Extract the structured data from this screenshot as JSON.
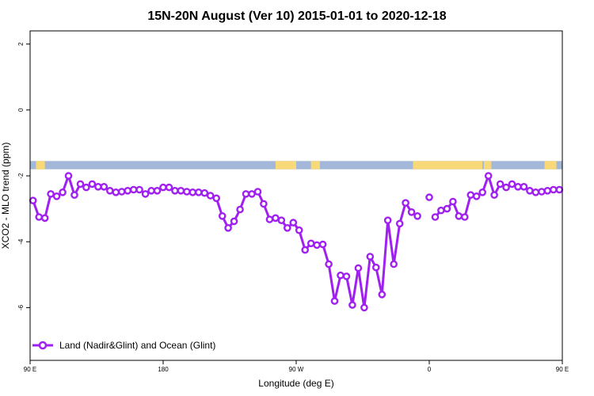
{
  "chart_data": {
    "type": "line",
    "title": "15N-20N August (Ver 10)   2015-01-01 to 2020-12-18",
    "xlabel": "Longitude (deg E)",
    "ylabel": "XCO2 - MLO trend (ppm)",
    "xlim": [
      90,
      450
    ],
    "ylim": [
      -7.6,
      2.4
    ],
    "grid": false,
    "legend_position": "bottom-left",
    "x_ticks": [
      {
        "value": 90,
        "label": "90 E"
      },
      {
        "value": 180,
        "label": "180"
      },
      {
        "value": 270,
        "label": "90 W"
      },
      {
        "value": 360,
        "label": "0"
      },
      {
        "value": 450,
        "label": "90 E"
      },
      {
        "value": 540,
        "label": "180"
      }
    ],
    "y_ticks": [
      {
        "value": 2,
        "label": "2"
      },
      {
        "value": 0,
        "label": "0"
      },
      {
        "value": -2,
        "label": "-2"
      },
      {
        "value": -4,
        "label": "-4"
      },
      {
        "value": -6,
        "label": "-6"
      }
    ],
    "land_strip": {
      "ocean_color": "#a3b8d8",
      "land_color": "#f9d977",
      "y_range": [
        -1.8,
        -1.55
      ],
      "land_spans": [
        [
          94,
          100
        ],
        [
          95,
          99
        ],
        [
          256,
          262
        ],
        [
          262,
          270
        ],
        [
          280,
          286
        ],
        [
          349,
          396
        ],
        [
          397,
          402
        ],
        [
          438,
          446
        ],
        [
          455,
          468
        ],
        [
          560,
          572
        ]
      ]
    },
    "series": [
      {
        "name": "Land (Nadir&Glint) and Ocean (Glint)",
        "color": "#a020f0",
        "segments": [
          [
            [
              92,
              -2.75
            ],
            [
              96,
              -3.25
            ],
            [
              100,
              -3.28
            ],
            [
              104,
              -2.55
            ],
            [
              108,
              -2.62
            ],
            [
              112,
              -2.5
            ],
            [
              116,
              -2.0
            ],
            [
              120,
              -2.58
            ],
            [
              124,
              -2.25
            ],
            [
              128,
              -2.35
            ],
            [
              132,
              -2.25
            ],
            [
              136,
              -2.33
            ],
            [
              140,
              -2.33
            ],
            [
              144,
              -2.45
            ],
            [
              148,
              -2.5
            ],
            [
              152,
              -2.48
            ],
            [
              156,
              -2.45
            ],
            [
              160,
              -2.42
            ],
            [
              164,
              -2.42
            ],
            [
              168,
              -2.55
            ],
            [
              172,
              -2.45
            ],
            [
              176,
              -2.45
            ],
            [
              180,
              -2.35
            ],
            [
              184,
              -2.35
            ],
            [
              188,
              -2.45
            ],
            [
              192,
              -2.45
            ],
            [
              196,
              -2.48
            ],
            [
              200,
              -2.5
            ],
            [
              204,
              -2.5
            ],
            [
              208,
              -2.52
            ],
            [
              212,
              -2.6
            ],
            [
              216,
              -2.68
            ],
            [
              220,
              -3.22
            ],
            [
              224,
              -3.58
            ],
            [
              228,
              -3.38
            ],
            [
              232,
              -3.02
            ],
            [
              236,
              -2.55
            ],
            [
              240,
              -2.55
            ],
            [
              244,
              -2.48
            ],
            [
              248,
              -2.85
            ],
            [
              252,
              -3.32
            ],
            [
              256,
              -3.28
            ],
            [
              260,
              -3.35
            ],
            [
              264,
              -3.58
            ],
            [
              268,
              -3.42
            ],
            [
              272,
              -3.65
            ],
            [
              276,
              -4.25
            ],
            [
              280,
              -4.05
            ],
            [
              284,
              -4.1
            ],
            [
              288,
              -4.08
            ],
            [
              292,
              -4.68
            ],
            [
              296,
              -5.8
            ],
            [
              300,
              -5.02
            ],
            [
              304,
              -5.05
            ],
            [
              308,
              -5.92
            ],
            [
              312,
              -4.8
            ],
            [
              316,
              -6.0
            ],
            [
              320,
              -4.45
            ],
            [
              324,
              -4.78
            ],
            [
              328,
              -5.6
            ],
            [
              332,
              -3.35
            ],
            [
              336,
              -4.68
            ],
            [
              340,
              -3.45
            ],
            [
              344,
              -2.82
            ],
            [
              348,
              -3.1
            ],
            [
              352,
              -3.22
            ]
          ],
          [
            [
              360,
              -2.65
            ]
          ],
          [
            [
              364,
              -3.25
            ],
            [
              368,
              -3.05
            ],
            [
              372,
              -3.0
            ],
            [
              376,
              -2.78
            ],
            [
              380,
              -3.22
            ],
            [
              384,
              -3.25
            ],
            [
              388,
              -2.58
            ],
            [
              392,
              -2.62
            ],
            [
              396,
              -2.5
            ],
            [
              400,
              -2.0
            ],
            [
              404,
              -2.58
            ],
            [
              408,
              -2.25
            ],
            [
              412,
              -2.35
            ],
            [
              416,
              -2.25
            ],
            [
              420,
              -2.33
            ],
            [
              424,
              -2.33
            ],
            [
              428,
              -2.45
            ],
            [
              432,
              -2.5
            ],
            [
              436,
              -2.48
            ],
            [
              440,
              -2.45
            ],
            [
              444,
              -2.42
            ],
            [
              448,
              -2.42
            ]
          ]
        ]
      }
    ]
  }
}
